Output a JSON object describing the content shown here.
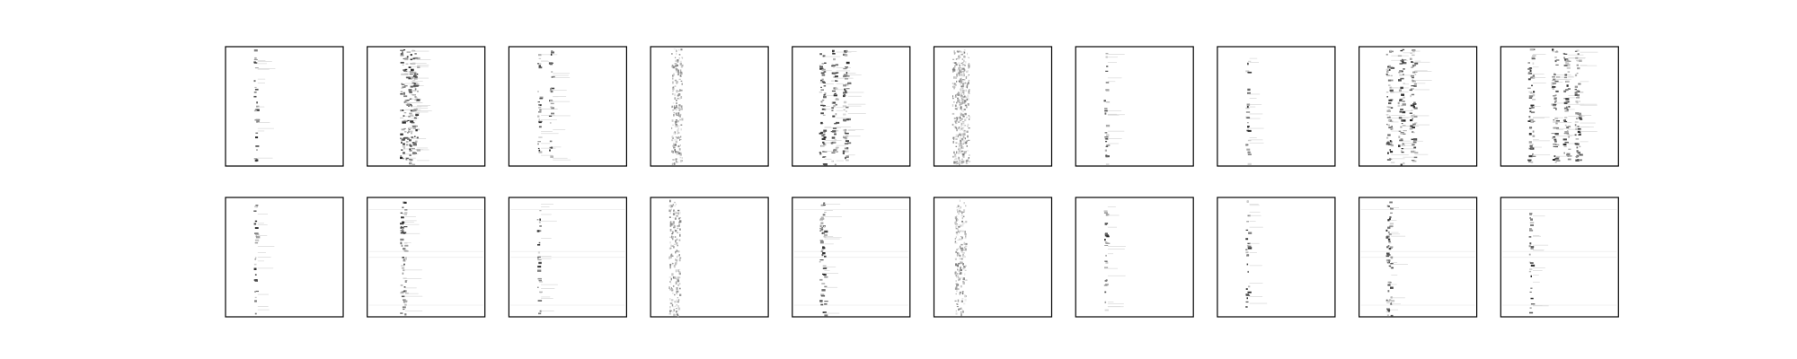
{
  "chart_data": {
    "type": "heatmap",
    "layout": {
      "rows": 2,
      "cols": 10
    },
    "title": "",
    "xlabel": "",
    "ylabel": "",
    "axes_ticks": false,
    "colormap": "gray_r",
    "panels": [
      {
        "row": 1,
        "col": 1,
        "pattern": "vertical-stripe-sparse",
        "stripe_x": [
          0.25
        ]
      },
      {
        "row": 1,
        "col": 2,
        "pattern": "vertical-stripe-dense",
        "stripe_x": [
          0.3,
          0.35,
          0.4
        ]
      },
      {
        "row": 1,
        "col": 3,
        "pattern": "vertical-stripe-sparse",
        "stripe_x": [
          0.25,
          0.35
        ]
      },
      {
        "row": 1,
        "col": 4,
        "pattern": "vertical-band-noisy",
        "stripe_x": [
          0.22
        ]
      },
      {
        "row": 1,
        "col": 5,
        "pattern": "vertical-stripe-dense",
        "stripe_x": [
          0.25,
          0.35,
          0.45
        ]
      },
      {
        "row": 1,
        "col": 6,
        "pattern": "vertical-band-noisy",
        "stripe_x": [
          0.2,
          0.25
        ]
      },
      {
        "row": 1,
        "col": 7,
        "pattern": "vertical-stripe-sparse",
        "stripe_x": [
          0.25
        ]
      },
      {
        "row": 1,
        "col": 8,
        "pattern": "vertical-stripe-sparse",
        "stripe_x": [
          0.25
        ]
      },
      {
        "row": 1,
        "col": 9,
        "pattern": "vertical-stripe-dense",
        "stripe_x": [
          0.25,
          0.35,
          0.45
        ]
      },
      {
        "row": 1,
        "col": 10,
        "pattern": "vertical-stripe-multi",
        "stripe_x": [
          0.25,
          0.45,
          0.55,
          0.65
        ]
      },
      {
        "row": 2,
        "col": 1,
        "pattern": "vertical-stripe-sparse",
        "stripe_x": [
          0.25
        ]
      },
      {
        "row": 2,
        "col": 2,
        "pattern": "vertical-stripe-dense",
        "stripe_x": [
          0.3
        ]
      },
      {
        "row": 2,
        "col": 3,
        "pattern": "vertical-stripe-sparse",
        "stripe_x": [
          0.25
        ]
      },
      {
        "row": 2,
        "col": 4,
        "pattern": "vertical-band-noisy",
        "stripe_x": [
          0.2
        ]
      },
      {
        "row": 2,
        "col": 5,
        "pattern": "vertical-stripe-dense",
        "stripe_x": [
          0.25
        ]
      },
      {
        "row": 2,
        "col": 6,
        "pattern": "vertical-band-noisy",
        "stripe_x": [
          0.22
        ]
      },
      {
        "row": 2,
        "col": 7,
        "pattern": "vertical-stripe-sparse",
        "stripe_x": [
          0.25
        ]
      },
      {
        "row": 2,
        "col": 8,
        "pattern": "vertical-stripe-sparse",
        "stripe_x": [
          0.25
        ]
      },
      {
        "row": 2,
        "col": 9,
        "pattern": "vertical-stripe-dense",
        "stripe_x": [
          0.25
        ]
      },
      {
        "row": 2,
        "col": 10,
        "pattern": "vertical-stripe-sparse",
        "stripe_x": [
          0.25
        ]
      }
    ]
  }
}
